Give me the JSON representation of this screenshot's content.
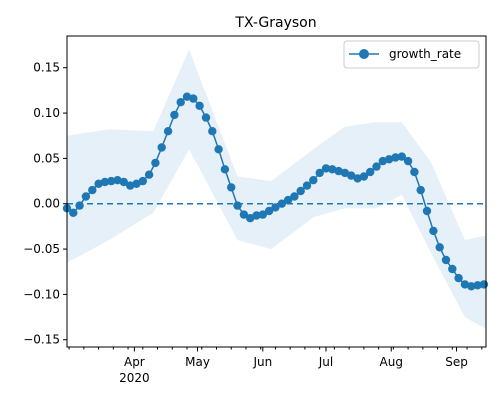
{
  "chart_data": {
    "type": "line",
    "title": "TX-Grayson",
    "xlabel": "",
    "ylabel": "",
    "x_axis": {
      "type": "date",
      "range": [
        "2020-02-29",
        "2020-09-15"
      ],
      "major_ticks": [
        {
          "date": "2020-04-01",
          "label": "Apr",
          "sublabel": "2020"
        },
        {
          "date": "2020-05-01",
          "label": "May",
          "sublabel": ""
        },
        {
          "date": "2020-06-01",
          "label": "Jun",
          "sublabel": ""
        },
        {
          "date": "2020-07-01",
          "label": "Jul",
          "sublabel": ""
        },
        {
          "date": "2020-08-01",
          "label": "Aug",
          "sublabel": ""
        },
        {
          "date": "2020-09-01",
          "label": "Sep",
          "sublabel": ""
        }
      ],
      "minor_ticks": "weekly"
    },
    "y_axis": {
      "ylim": [
        -0.158,
        0.185
      ],
      "ticks": [
        -0.15,
        -0.1,
        -0.05,
        0.0,
        0.05,
        0.1,
        0.15
      ],
      "tick_labels": [
        "−0.15",
        "−0.10",
        "−0.05",
        "0.00",
        "0.05",
        "0.10",
        "0.15"
      ]
    },
    "grid": false,
    "legend": {
      "position": "top-right",
      "entries": [
        "growth_rate"
      ]
    },
    "reference_line": {
      "y": 0,
      "style": "dashed",
      "color": "#1f77b4"
    },
    "colors": {
      "series": "#1f77b4",
      "band": "#d6e6f4"
    },
    "series": [
      {
        "name": "growth_rate",
        "marker": "circle",
        "points": [
          [
            "2020-02-29",
            -0.005
          ],
          [
            "2020-03-03",
            -0.01
          ],
          [
            "2020-03-06",
            -0.002
          ],
          [
            "2020-03-09",
            0.008
          ],
          [
            "2020-03-12",
            0.015
          ],
          [
            "2020-03-15",
            0.022
          ],
          [
            "2020-03-18",
            0.024
          ],
          [
            "2020-03-21",
            0.025
          ],
          [
            "2020-03-24",
            0.026
          ],
          [
            "2020-03-27",
            0.024
          ],
          [
            "2020-03-30",
            0.02
          ],
          [
            "2020-04-02",
            0.022
          ],
          [
            "2020-04-05",
            0.025
          ],
          [
            "2020-04-08",
            0.032
          ],
          [
            "2020-04-11",
            0.045
          ],
          [
            "2020-04-14",
            0.062
          ],
          [
            "2020-04-17",
            0.08
          ],
          [
            "2020-04-20",
            0.098
          ],
          [
            "2020-04-23",
            0.112
          ],
          [
            "2020-04-26",
            0.118
          ],
          [
            "2020-04-29",
            0.116
          ],
          [
            "2020-05-02",
            0.108
          ],
          [
            "2020-05-05",
            0.095
          ],
          [
            "2020-05-08",
            0.08
          ],
          [
            "2020-05-11",
            0.06
          ],
          [
            "2020-05-14",
            0.038
          ],
          [
            "2020-05-17",
            0.018
          ],
          [
            "2020-05-20",
            -0.002
          ],
          [
            "2020-05-23",
            -0.012
          ],
          [
            "2020-05-26",
            -0.016
          ],
          [
            "2020-05-29",
            -0.013
          ],
          [
            "2020-06-01",
            -0.012
          ],
          [
            "2020-06-04",
            -0.008
          ],
          [
            "2020-06-07",
            -0.004
          ],
          [
            "2020-06-10",
            0.0
          ],
          [
            "2020-06-13",
            0.004
          ],
          [
            "2020-06-16",
            0.008
          ],
          [
            "2020-06-19",
            0.014
          ],
          [
            "2020-06-22",
            0.02
          ],
          [
            "2020-06-25",
            0.026
          ],
          [
            "2020-06-28",
            0.034
          ],
          [
            "2020-07-01",
            0.039
          ],
          [
            "2020-07-04",
            0.038
          ],
          [
            "2020-07-07",
            0.036
          ],
          [
            "2020-07-10",
            0.034
          ],
          [
            "2020-07-13",
            0.031
          ],
          [
            "2020-07-16",
            0.028
          ],
          [
            "2020-07-19",
            0.03
          ],
          [
            "2020-07-22",
            0.035
          ],
          [
            "2020-07-25",
            0.041
          ],
          [
            "2020-07-28",
            0.047
          ],
          [
            "2020-07-31",
            0.049
          ],
          [
            "2020-08-03",
            0.051
          ],
          [
            "2020-08-06",
            0.052
          ],
          [
            "2020-08-09",
            0.047
          ],
          [
            "2020-08-12",
            0.035
          ],
          [
            "2020-08-15",
            0.015
          ],
          [
            "2020-08-18",
            -0.008
          ],
          [
            "2020-08-21",
            -0.03
          ],
          [
            "2020-08-24",
            -0.048
          ],
          [
            "2020-08-27",
            -0.062
          ],
          [
            "2020-08-30",
            -0.072
          ],
          [
            "2020-09-02",
            -0.082
          ],
          [
            "2020-09-05",
            -0.089
          ],
          [
            "2020-09-08",
            -0.091
          ],
          [
            "2020-09-11",
            -0.09
          ],
          [
            "2020-09-14",
            -0.089
          ]
        ],
        "band": {
          "dates": [
            "2020-02-29",
            "2020-03-20",
            "2020-04-10",
            "2020-04-27",
            "2020-05-20",
            "2020-06-05",
            "2020-06-25",
            "2020-07-10",
            "2020-07-25",
            "2020-08-06",
            "2020-08-20",
            "2020-09-05",
            "2020-09-15"
          ],
          "upper": [
            0.075,
            0.082,
            0.08,
            0.17,
            0.03,
            0.025,
            0.06,
            0.085,
            0.09,
            0.09,
            0.045,
            -0.04,
            -0.035
          ],
          "lower": [
            -0.065,
            -0.04,
            -0.01,
            0.06,
            -0.04,
            -0.05,
            -0.015,
            -0.005,
            -0.005,
            0.01,
            -0.055,
            -0.125,
            -0.138
          ]
        }
      }
    ]
  }
}
